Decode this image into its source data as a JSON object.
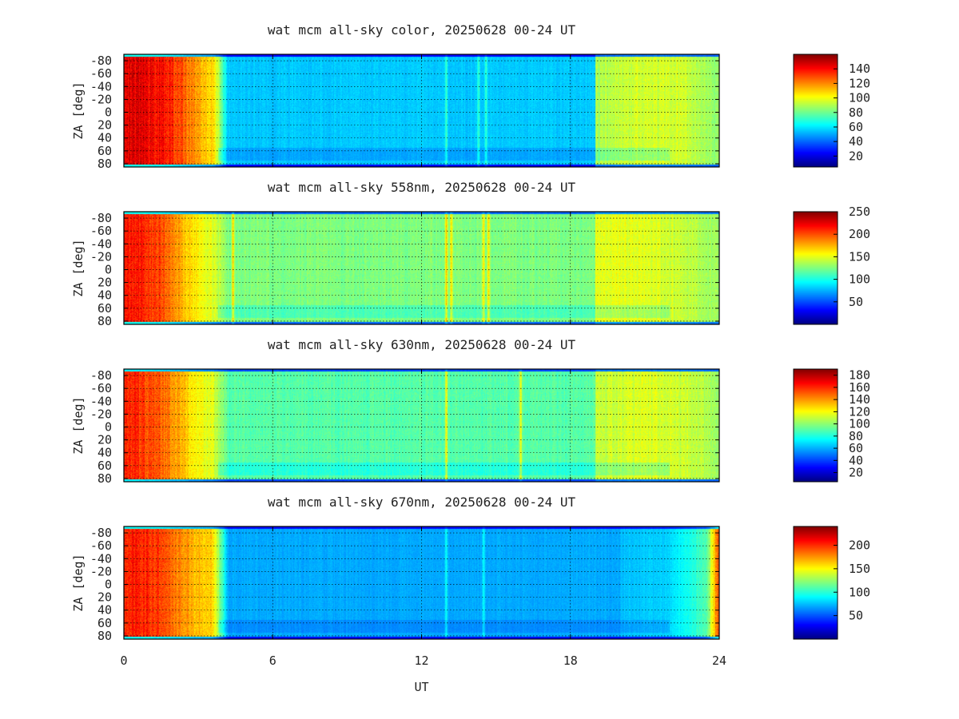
{
  "chart_data": {
    "type": "heatmap",
    "xlabel": "UT",
    "xlim": [
      0,
      24
    ],
    "xticks": [
      0,
      6,
      12,
      18,
      24
    ],
    "grid": true,
    "panels": [
      {
        "title": "wat mcm all-sky color, 20250628 00-24 UT",
        "ylabel": "ZA [deg]",
        "ylim": [
          -90,
          85
        ],
        "yticks": [
          -80,
          -60,
          -40,
          -20,
          0,
          20,
          40,
          60,
          80
        ],
        "ytick_labels": [
          "-80",
          "-60",
          "-40",
          "-20",
          "0",
          "20",
          "40",
          "60",
          "80"
        ],
        "colorbar_ticks": [
          20,
          40,
          60,
          80,
          100,
          120,
          140
        ],
        "colorbar_range": [
          5,
          160
        ],
        "colormap": "jet",
        "features": {
          "early_peak": [
            [
              0.4,
              145
            ],
            [
              1.5,
              140
            ],
            [
              2.5,
              125
            ],
            [
              3.3,
              110
            ]
          ],
          "background_value": 55,
          "late_rise": [
            [
              19,
              90
            ],
            [
              21,
              95
            ],
            [
              22.5,
              95
            ],
            [
              24,
              85
            ]
          ],
          "streaks_ut": [
            13.0,
            14.3,
            14.6
          ]
        }
      },
      {
        "title": "wat mcm all-sky 558nm, 20250628 00-24 UT",
        "ylabel": "ZA [deg]",
        "ylim": [
          -90,
          85
        ],
        "yticks": [
          -80,
          -60,
          -40,
          -20,
          0,
          20,
          40,
          60,
          80
        ],
        "ytick_labels": [
          "-80",
          "-60",
          "-40",
          "-20",
          "0",
          "20",
          "40",
          "60",
          "80"
        ],
        "colorbar_ticks": [
          50,
          100,
          150,
          200,
          250
        ],
        "colorbar_range": [
          0,
          250
        ],
        "colormap": "jet",
        "features": {
          "early_peak": [
            [
              0.4,
              215
            ],
            [
              1.5,
              200
            ],
            [
              2.5,
              170
            ],
            [
              3.3,
              150
            ]
          ],
          "background_value": 125,
          "late_rise": [
            [
              19,
              150
            ],
            [
              21,
              150
            ],
            [
              23,
              140
            ],
            [
              24,
              130
            ]
          ],
          "streaks_ut": [
            4.4,
            13.0,
            13.2,
            14.5,
            14.7
          ]
        }
      },
      {
        "title": "wat mcm all-sky 630nm, 20250628 00-24 UT",
        "ylabel": "ZA [deg]",
        "ylim": [
          -90,
          85
        ],
        "yticks": [
          -80,
          -60,
          -40,
          -20,
          0,
          20,
          40,
          60,
          80
        ],
        "ytick_labels": [
          "-80",
          "-60",
          "-40",
          "-20",
          "0",
          "20",
          "40",
          "60",
          "80"
        ],
        "colorbar_ticks": [
          20,
          40,
          60,
          80,
          100,
          120,
          140,
          160,
          180
        ],
        "colorbar_range": [
          5,
          190
        ],
        "colormap": "jet",
        "features": {
          "early_peak": [
            [
              0.4,
              160
            ],
            [
              1.5,
              150
            ],
            [
              2.5,
              130
            ],
            [
              3.3,
              115
            ]
          ],
          "background_value": 90,
          "late_rise": [
            [
              19,
              110
            ],
            [
              21,
              115
            ],
            [
              23,
              110
            ],
            [
              24,
              100
            ]
          ],
          "streaks_ut": [
            13.0,
            16.0
          ]
        }
      },
      {
        "title": "wat mcm all-sky 670nm, 20250628 00-24 UT",
        "ylabel": "ZA [deg]",
        "ylim": [
          -90,
          85
        ],
        "yticks": [
          -80,
          -60,
          -40,
          -20,
          0,
          20,
          40,
          60,
          80
        ],
        "ytick_labels": [
          "-80",
          "-60",
          "-40",
          "-20",
          "0",
          "20",
          "40",
          "60",
          "80"
        ],
        "colorbar_ticks": [
          50,
          100,
          150,
          200
        ],
        "colorbar_range": [
          0,
          240
        ],
        "colormap": "jet",
        "features": {
          "early_peak": [
            [
              0.4,
              205
            ],
            [
              1.5,
              195
            ],
            [
              2.5,
              175
            ],
            [
              3.3,
              160
            ]
          ],
          "background_value": 70,
          "late_rise": [
            [
              20,
              75
            ],
            [
              22,
              80
            ],
            [
              23.5,
              110
            ],
            [
              24,
              200
            ]
          ],
          "streaks_ut": [
            13.0,
            14.5
          ]
        }
      }
    ]
  }
}
